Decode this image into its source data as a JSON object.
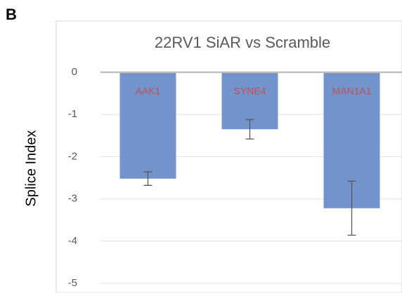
{
  "panel_label": "B",
  "chart_data": {
    "type": "bar",
    "title": "22RV1 SiAR vs Scramble",
    "y_label": "Splice Index",
    "categories": [
      "AAK1",
      "SYNE4",
      "MAN1A1"
    ],
    "values": [
      -2.52,
      -1.35,
      -3.22
    ],
    "errors": [
      0.16,
      0.23,
      0.64
    ],
    "color": "#7393cc",
    "ylim": [
      -5,
      0
    ],
    "yticks": [
      0,
      -1,
      -2,
      -3,
      -4,
      -5
    ],
    "grid": true
  }
}
